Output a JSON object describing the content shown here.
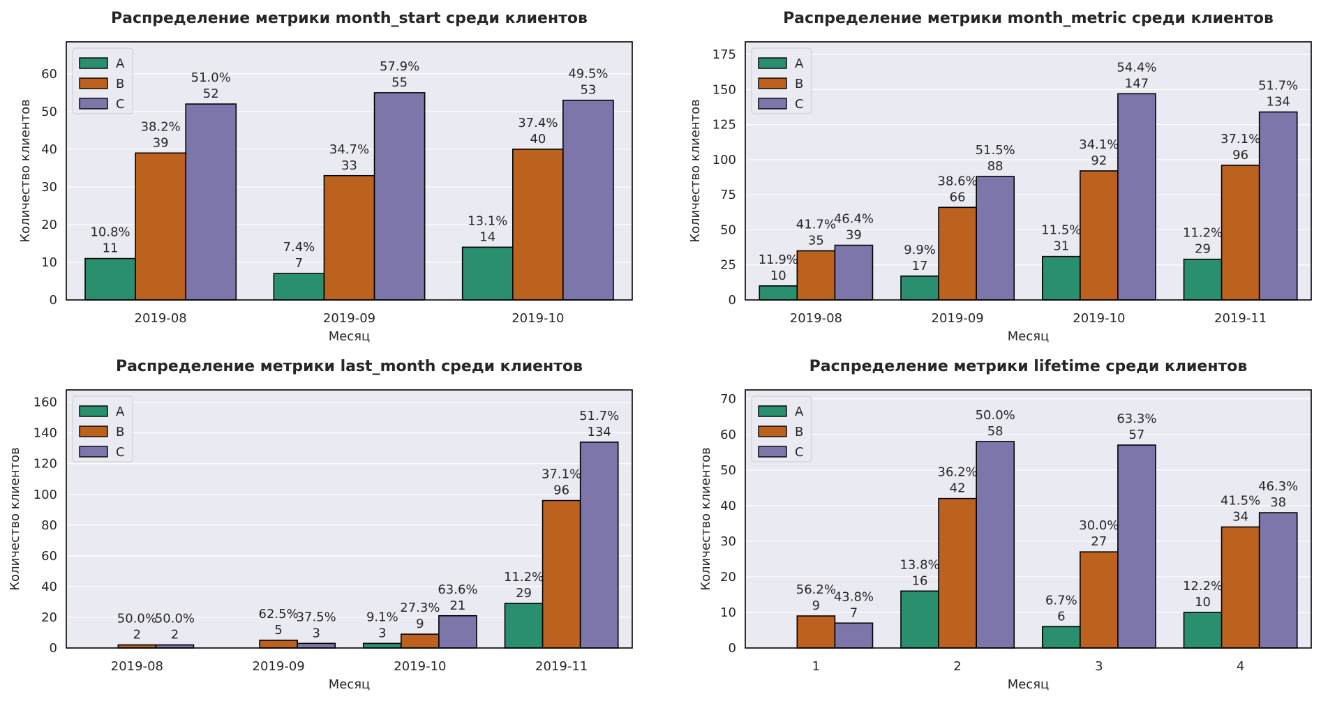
{
  "colors": {
    "A": "#2a8f6e",
    "B": "#bd611e",
    "C": "#7c76ab",
    "plot_bg": "#eaeaf2",
    "grid": "#ffffff"
  },
  "chart_data": [
    {
      "type": "bar",
      "title": "Распределение метрики month_start среди клиентов",
      "xlabel": "Месяц",
      "ylabel": "Количество клиентов",
      "categories": [
        "2019-08",
        "2019-09",
        "2019-10"
      ],
      "series": [
        {
          "name": "A",
          "values": [
            11,
            7,
            14
          ],
          "labels": [
            "10.8%",
            "7.4%",
            "13.1%"
          ]
        },
        {
          "name": "B",
          "values": [
            39,
            33,
            40
          ],
          "labels": [
            "38.2%",
            "34.7%",
            "37.4%"
          ]
        },
        {
          "name": "C",
          "values": [
            52,
            55,
            53
          ],
          "labels": [
            "51.0%",
            "57.9%",
            "49.5%"
          ]
        }
      ],
      "ylim": [
        0,
        68.5
      ],
      "yticks": [
        0,
        10,
        20,
        30,
        40,
        50,
        60
      ],
      "grid": true,
      "legend": "top-left"
    },
    {
      "type": "bar",
      "title": "Распределение метрики month_metric среди клиентов",
      "xlabel": "Месяц",
      "ylabel": "Количество клиентов",
      "categories": [
        "2019-08",
        "2019-09",
        "2019-10",
        "2019-11"
      ],
      "series": [
        {
          "name": "A",
          "values": [
            10,
            17,
            31,
            29
          ],
          "labels": [
            "11.9%",
            "9.9%",
            "11.5%",
            "11.2%"
          ]
        },
        {
          "name": "B",
          "values": [
            35,
            66,
            92,
            96
          ],
          "labels": [
            "41.7%",
            "38.6%",
            "34.1%",
            "37.1%"
          ]
        },
        {
          "name": "C",
          "values": [
            39,
            88,
            147,
            134
          ],
          "labels": [
            "46.4%",
            "51.5%",
            "54.4%",
            "51.7%"
          ]
        }
      ],
      "ylim": [
        0,
        184
      ],
      "yticks": [
        0,
        25,
        50,
        75,
        100,
        125,
        150,
        175
      ],
      "grid": true,
      "legend": "top-left"
    },
    {
      "type": "bar",
      "title": "Распределение метрики last_month среди клиентов",
      "xlabel": "Месяц",
      "ylabel": "Количество клиентов",
      "categories": [
        "2019-08",
        "2019-09",
        "2019-10",
        "2019-11"
      ],
      "series": [
        {
          "name": "A",
          "values": [
            null,
            null,
            3,
            29
          ],
          "labels": [
            "",
            "",
            "9.1%",
            "11.2%"
          ]
        },
        {
          "name": "B",
          "values": [
            2,
            5,
            9,
            96
          ],
          "labels": [
            "50.0%",
            "62.5%",
            "27.3%",
            "37.1%"
          ]
        },
        {
          "name": "C",
          "values": [
            2,
            3,
            21,
            134
          ],
          "labels": [
            "50.0%",
            "37.5%",
            "63.6%",
            "51.7%"
          ]
        }
      ],
      "ylim": [
        0,
        168
      ],
      "yticks": [
        0,
        20,
        40,
        60,
        80,
        100,
        120,
        140,
        160
      ],
      "grid": true,
      "legend": "top-left"
    },
    {
      "type": "bar",
      "title": "Распределение метрики lifetime среди клиентов",
      "xlabel": "Месяц",
      "ylabel": "Количество клиентов",
      "categories": [
        "1",
        "2",
        "3",
        "4"
      ],
      "series": [
        {
          "name": "A",
          "values": [
            null,
            16,
            6,
            10
          ],
          "labels": [
            "",
            "13.8%",
            "6.7%",
            "12.2%"
          ]
        },
        {
          "name": "B",
          "values": [
            9,
            42,
            27,
            34
          ],
          "labels": [
            "56.2%",
            "36.2%",
            "30.0%",
            "41.5%"
          ]
        },
        {
          "name": "C",
          "values": [
            7,
            58,
            57,
            38
          ],
          "labels": [
            "43.8%",
            "50.0%",
            "63.3%",
            "46.3%"
          ]
        }
      ],
      "ylim": [
        0,
        72.5
      ],
      "yticks": [
        0,
        10,
        20,
        30,
        40,
        50,
        60,
        70
      ],
      "grid": true,
      "legend": "top-left"
    }
  ]
}
